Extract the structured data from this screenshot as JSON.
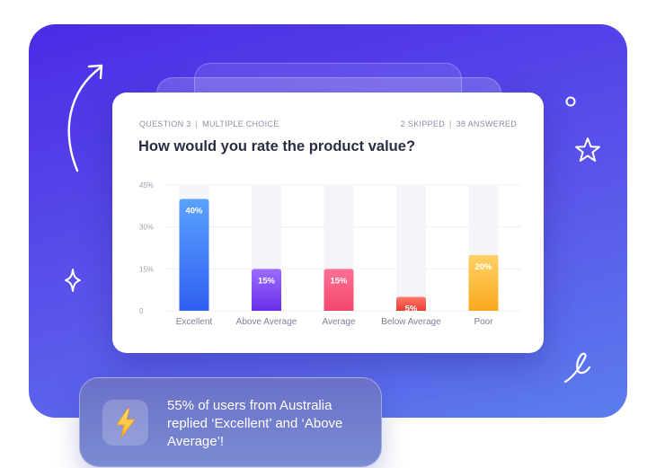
{
  "header": {
    "question_label": "QUESTION 3",
    "question_type": "MULTIPLE CHOICE",
    "skipped": "2 SKIPPED",
    "answered": "38 ANSWERED"
  },
  "question": "How would you rate the product value?",
  "chart_data": {
    "type": "bar",
    "categories": [
      "Excellent",
      "Above Average",
      "Average",
      "Below Average",
      "Poor"
    ],
    "values": [
      40,
      15,
      15,
      5,
      20
    ],
    "value_labels": [
      "40%",
      "15%",
      "15%",
      "5%",
      "20%"
    ],
    "yticks": [
      0,
      15,
      30,
      45
    ],
    "ytick_labels": [
      "0",
      "15%",
      "30%",
      "45%"
    ],
    "ylim": [
      0,
      45
    ],
    "grid": true,
    "title": "",
    "xlabel": "",
    "ylabel": "",
    "colors": [
      [
        "#5aa2ff",
        "#2f5ff0"
      ],
      [
        "#9b6cff",
        "#6a2ee8"
      ],
      [
        "#ff6f95",
        "#f2486b"
      ],
      [
        "#ff7a6a",
        "#ea3d32"
      ],
      [
        "#ffd166",
        "#f9a91f"
      ]
    ],
    "track_color": "#f4f5f9"
  },
  "callout": {
    "icon": "lightning-icon",
    "text": "55% of users from Australia replied ‘Excellent’ and ‘Above Average’!"
  },
  "theme": {
    "accent": "#4b2be6"
  }
}
